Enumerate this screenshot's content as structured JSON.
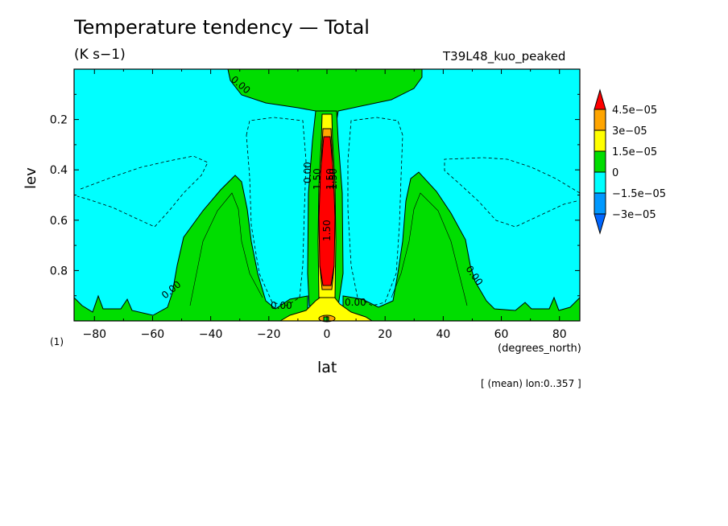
{
  "header": {
    "title": "Temperature tendency — Total",
    "units": "(K s−1)",
    "experiment": "T39L48_kuo_peaked"
  },
  "footer": {
    "xaxis_units": "(degrees_north)",
    "averaging_note": "[ (mean) lon:0..357 ]",
    "yaxis_note": "(1)"
  },
  "chart_data": {
    "type": "contour",
    "title": "Temperature tendency — Total",
    "units": "(K s−1)",
    "xlabel": "lat",
    "ylabel": "lev",
    "xlim": [
      -87,
      87
    ],
    "ylim": [
      1.0,
      0.0
    ],
    "x_ticks": [
      -80,
      -60,
      -40,
      -20,
      0,
      20,
      40,
      60,
      80
    ],
    "x_tick_labels": [
      "−80",
      "−60",
      "−40",
      "−20",
      "0",
      "20",
      "40",
      "60",
      "80"
    ],
    "y_ticks": [
      0.2,
      0.4,
      0.6,
      0.8
    ],
    "y_tick_labels": [
      "0.2",
      "0.4",
      "0.6",
      "0.8"
    ],
    "colorbar": {
      "levels": [
        "4.5e−05",
        "3e−05",
        "1.5e−05",
        "0",
        "−1.5e−05",
        "−3e−05"
      ],
      "colors": [
        "#ff0000",
        "#ffa500",
        "#ffff00",
        "#00dd00",
        "#00ffff",
        "#0099ff",
        "#0066ff"
      ]
    },
    "contour_labels": [
      "0.00",
      "0.00",
      "0.00",
      "0.00",
      "0.00",
      "0.00",
      "1.50",
      "1.50",
      "1.50",
      "1.50"
    ],
    "background_color": "#00ffff",
    "colors": {
      "cyan": "#00ffff",
      "green": "#00dd00",
      "yellow": "#ffff00",
      "orange": "#ffa500",
      "red": "#ff0000"
    }
  }
}
